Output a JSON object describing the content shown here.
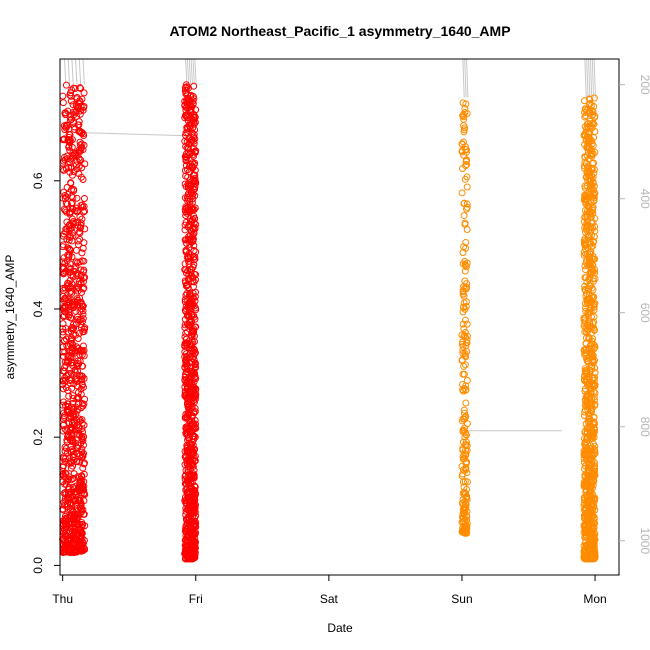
{
  "chart_data": {
    "type": "scatter",
    "title": "ATOM2 Northeast_Pacific_1 asymmetry_1640_AMP",
    "xlabel": "Date",
    "ylabel": "asymmetry_1640_AMP",
    "x_ticks": [
      "Thu",
      "Fri",
      "Sat",
      "Sun",
      "Mon"
    ],
    "y_ticks": [
      "0.0",
      "0.2",
      "0.4",
      "0.6"
    ],
    "y_tick_values": [
      0.0,
      0.2,
      0.4,
      0.6
    ],
    "ylim": [
      -0.015,
      0.79
    ],
    "y2_ticks": [
      "200",
      "400",
      "600",
      "800",
      "1000"
    ],
    "y2_tick_values": [
      200,
      400,
      600,
      800,
      1000
    ],
    "y2lim": [
      1060,
      155
    ],
    "xlim_days": [
      -0.02,
      4.18
    ],
    "grid": false,
    "colors": {
      "day1": "#ff0000",
      "day2": "#ff8c00",
      "pressure_line": "#c8c8c8"
    },
    "series": [
      {
        "x_range": [
          "Thu 00:00",
          "Thu 04:00"
        ],
        "y_range": [
          0.02,
          0.75
        ],
        "color": "#ff0000",
        "points": 900
      },
      {
        "x_range": [
          "Thu 22:00",
          "Fri 00:00"
        ],
        "y_range": [
          0.01,
          0.75
        ],
        "color": "#ff0000",
        "points": 900
      },
      {
        "x_range": [
          "Sun 00:00",
          "Sun 01:00"
        ],
        "y_range": [
          0.05,
          0.73
        ],
        "color": "#ff8c00",
        "points": 220
      },
      {
        "x_range": [
          "Sun 22:00",
          "Mon 00:00"
        ],
        "y_range": [
          0.01,
          0.73
        ],
        "color": "#ff8c00",
        "points": 900
      }
    ]
  }
}
